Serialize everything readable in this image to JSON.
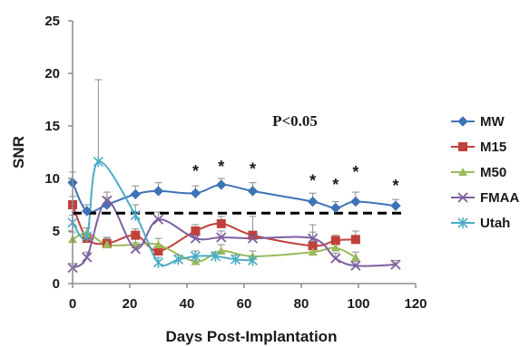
{
  "chart_data": {
    "type": "line",
    "xlabel": "Days Post-Implantation",
    "ylabel": "SNR",
    "xlim": [
      0,
      120
    ],
    "ylim": [
      0,
      25
    ],
    "xticks": [
      "0",
      "20",
      "40",
      "60",
      "80",
      "100",
      "120"
    ],
    "yticks": [
      "0",
      "5",
      "10",
      "15",
      "20",
      "25"
    ],
    "grid": false,
    "legend_position": "right",
    "annotation": "P<0.05",
    "significance_marker": "*",
    "significance_days": [
      43,
      52,
      63,
      84,
      92,
      99,
      113
    ],
    "threshold_line": {
      "y": 6.7,
      "style": "dashed",
      "color": "#000000"
    },
    "series": [
      {
        "name": "MW",
        "color": "#3f73b7",
        "marker": "diamond",
        "x": [
          0,
          5,
          12,
          22,
          30,
          43,
          52,
          63,
          84,
          92,
          99,
          113
        ],
        "y": [
          9.6,
          6.9,
          7.5,
          8.5,
          8.8,
          8.6,
          9.4,
          8.8,
          7.8,
          7.2,
          7.8,
          7.4
        ],
        "err": [
          1.0,
          0.6,
          0.7,
          0.8,
          0.8,
          0.7,
          0.6,
          0.8,
          0.8,
          0.6,
          0.9,
          0.6
        ]
      },
      {
        "name": "M15",
        "color": "#c0413c",
        "marker": "square",
        "x": [
          0,
          5,
          12,
          22,
          30,
          43,
          52,
          63,
          84,
          92,
          99
        ],
        "y": [
          7.5,
          4.3,
          3.8,
          4.6,
          3.1,
          5.0,
          5.7,
          4.6,
          3.6,
          4.1,
          4.2
        ],
        "err": [
          0.8,
          0.5,
          0.6,
          0.6,
          0.6,
          0.6,
          0.7,
          1.8,
          2.0,
          0.5,
          0.8
        ]
      },
      {
        "name": "M50",
        "color": "#9bbb59",
        "marker": "triangle",
        "x": [
          0,
          5,
          12,
          22,
          30,
          43,
          52,
          63,
          84,
          92,
          99
        ],
        "y": [
          4.2,
          4.8,
          3.7,
          3.7,
          3.7,
          2.1,
          3.1,
          2.6,
          3.0,
          3.4,
          2.5
        ],
        "err": [
          0.7,
          0.5,
          0.6,
          0.6,
          0.6,
          0.5,
          0.6,
          0.5,
          0.6,
          0.6,
          0.5
        ]
      },
      {
        "name": "FMAA",
        "color": "#7e5fa0",
        "marker": "x",
        "x": [
          0,
          5,
          12,
          22,
          30,
          43,
          52,
          63,
          84,
          92,
          99,
          113
        ],
        "y": [
          1.5,
          2.5,
          7.9,
          3.3,
          6.1,
          4.3,
          4.4,
          4.3,
          4.3,
          2.4,
          1.7,
          1.8
        ],
        "err": [
          0.4,
          0.5,
          0.8,
          0.6,
          0.7,
          0.6,
          0.6,
          0.5,
          0.6,
          0.5,
          0.4,
          0.4
        ]
      },
      {
        "name": "Utah",
        "color": "#4bacc6",
        "marker": "star",
        "x": [
          0,
          5,
          9,
          22,
          30,
          37,
          43,
          50,
          57,
          63
        ],
        "y": [
          5.8,
          4.5,
          11.6,
          6.5,
          2.0,
          2.3,
          2.6,
          2.6,
          2.3,
          2.2
        ],
        "err": [
          0.7,
          0.8,
          7.8,
          1.0,
          0.5,
          0.4,
          0.5,
          0.4,
          0.4,
          0.4
        ]
      }
    ]
  }
}
